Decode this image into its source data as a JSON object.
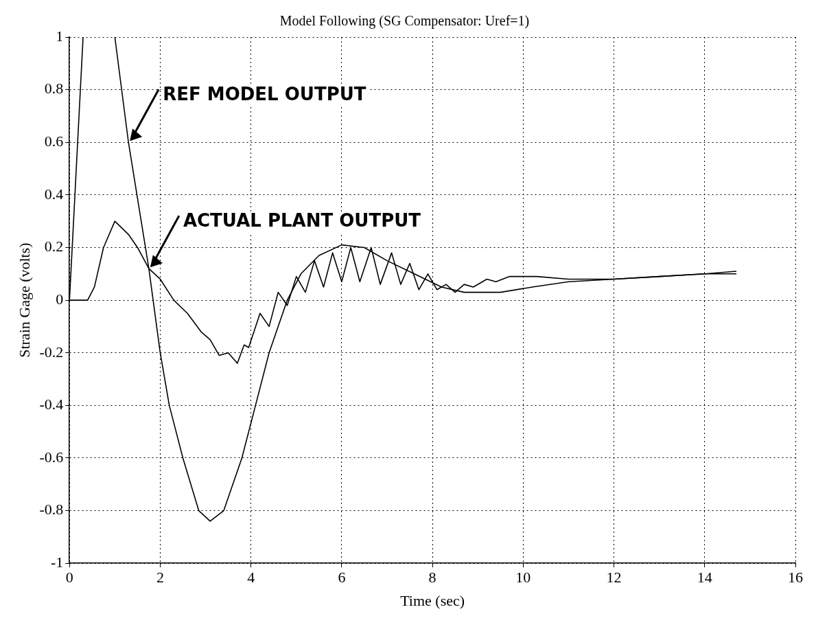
{
  "chart_data": {
    "type": "line",
    "title": "Model Following (SG Compensator: Uref=1)",
    "xlabel": "Time (sec)",
    "ylabel": "Strain Gage (volts)",
    "xlim": [
      0,
      16
    ],
    "xticks": [
      0,
      2,
      4,
      6,
      8,
      10,
      12,
      14,
      16
    ],
    "ylim": [
      -1,
      1
    ],
    "yticks": [
      -1,
      -0.8,
      -0.6,
      -0.4,
      -0.2,
      0,
      0.2,
      0.4,
      0.6,
      0.8,
      1
    ],
    "grid": true,
    "legend": false,
    "marker": "none",
    "line_style": "solid",
    "annotations": [
      {
        "text": "REF MODEL OUTPUT",
        "x": 1.3,
        "y": 0.6
      },
      {
        "text": "ACTUAL PLANT OUTPUT",
        "x": 1.75,
        "y": 0.12
      }
    ],
    "series": [
      {
        "color": "#000000",
        "x": [
          0,
          0.15,
          0.3,
          0.32,
          1.0,
          1.3,
          1.75,
          2.0,
          2.2,
          2.5,
          2.85,
          3.1,
          3.4,
          3.8,
          4.1,
          4.4,
          4.8,
          5.1,
          5.5,
          6.0,
          6.5,
          7.0,
          7.6,
          8.2,
          8.7,
          9.5,
          10.2,
          11,
          12,
          13,
          14,
          14.7
        ],
        "values": [
          0,
          0.5,
          1,
          null,
          1,
          0.6,
          0.12,
          -0.2,
          -0.4,
          -0.6,
          -0.8,
          -0.84,
          -0.8,
          -0.6,
          -0.4,
          -0.2,
          0,
          0.1,
          0.17,
          0.21,
          0.2,
          0.15,
          0.1,
          0.05,
          0.03,
          0.03,
          0.05,
          0.07,
          0.08,
          0.09,
          0.1,
          0.1
        ]
      },
      {
        "color": "#000000",
        "x": [
          0,
          0.4,
          0.55,
          0.75,
          1.0,
          1.3,
          1.5,
          1.75,
          2.0,
          2.3,
          2.6,
          2.9,
          3.1,
          3.3,
          3.5,
          3.7,
          3.85,
          3.95,
          4.2,
          4.4,
          4.6,
          4.8,
          5.0,
          5.2,
          5.4,
          5.6,
          5.8,
          6.0,
          6.2,
          6.4,
          6.65,
          6.85,
          7.1,
          7.3,
          7.5,
          7.7,
          7.9,
          8.1,
          8.3,
          8.5,
          8.7,
          8.9,
          9.2,
          9.4,
          9.7,
          10.3,
          11,
          12,
          13,
          14,
          14.7
        ],
        "values": [
          0,
          0,
          0.05,
          0.2,
          0.3,
          0.25,
          0.2,
          0.12,
          0.08,
          0,
          -0.05,
          -0.12,
          -0.15,
          -0.21,
          -0.2,
          -0.24,
          -0.17,
          -0.18,
          -0.05,
          -0.1,
          0.03,
          -0.02,
          0.09,
          0.03,
          0.15,
          0.05,
          0.18,
          0.07,
          0.2,
          0.07,
          0.2,
          0.06,
          0.18,
          0.06,
          0.14,
          0.04,
          0.1,
          0.04,
          0.06,
          0.03,
          0.06,
          0.05,
          0.08,
          0.07,
          0.09,
          0.09,
          0.08,
          0.08,
          0.09,
          0.1,
          0.11
        ]
      }
    ]
  }
}
